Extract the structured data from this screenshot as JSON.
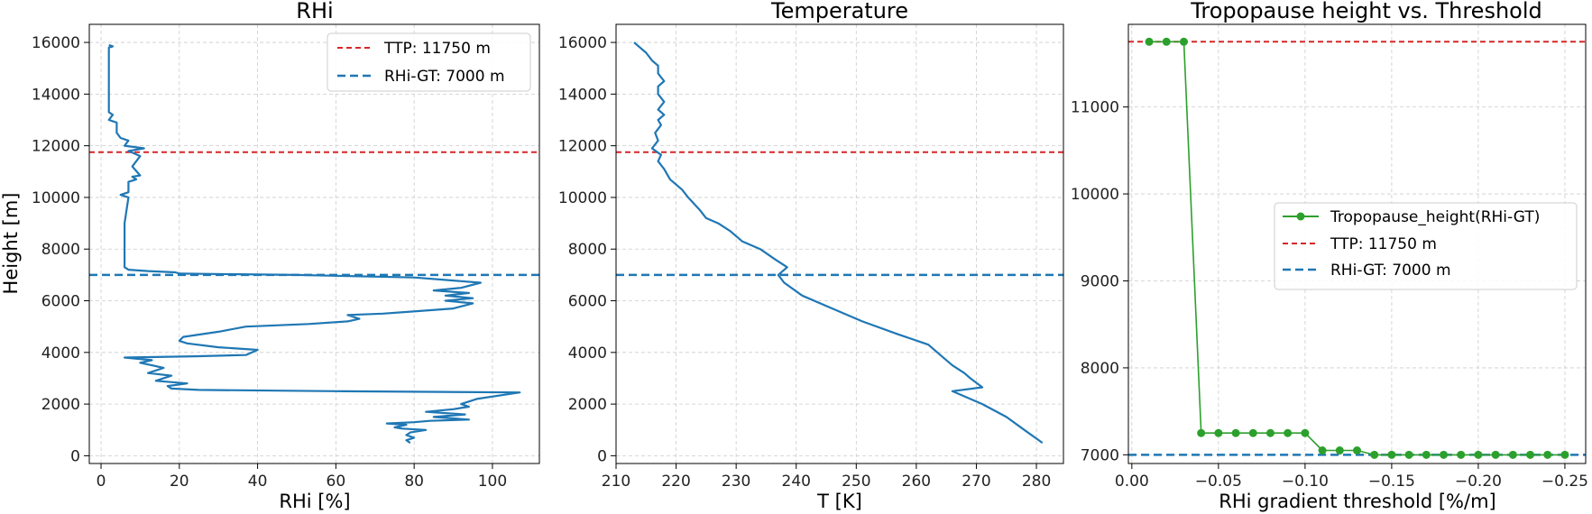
{
  "colors": {
    "profile": "#1f77b4",
    "ttp_line": "#d62728",
    "gt_line": "#1f77b4",
    "threshold_series": "#2ca02c",
    "grid": "#cccccc"
  },
  "chart_data": [
    {
      "type": "line",
      "title": "RHi",
      "xlabel": "RHi [%]",
      "ylabel": "Height [m]",
      "xlim": [
        -3,
        112
      ],
      "ylim": [
        -300,
        16700
      ],
      "xticks": [
        0,
        20,
        40,
        60,
        80,
        100
      ],
      "yticks": [
        0,
        2000,
        4000,
        6000,
        8000,
        10000,
        12000,
        14000,
        16000
      ],
      "grid": true,
      "legend_position": "top-right",
      "legend": [
        "TTP: 11750 m",
        "RHi-GT: 7000 m"
      ],
      "hlines": [
        {
          "label": "TTP: 11750 m",
          "y": 11750,
          "color": "#d62728"
        },
        {
          "label": "RHi-GT: 7000 m",
          "y": 7000,
          "color": "#1f77b4"
        }
      ],
      "series": [
        {
          "points": [
            [
              79,
              500
            ],
            [
              78,
              600
            ],
            [
              80,
              700
            ],
            [
              78,
              800
            ],
            [
              79,
              900
            ],
            [
              83,
              1000
            ],
            [
              77,
              1050
            ],
            [
              75,
              1100
            ],
            [
              78,
              1200
            ],
            [
              73,
              1250
            ],
            [
              80,
              1300
            ],
            [
              84,
              1350
            ],
            [
              94,
              1400
            ],
            [
              85,
              1500
            ],
            [
              93,
              1600
            ],
            [
              83,
              1700
            ],
            [
              90,
              1800
            ],
            [
              94,
              1900
            ],
            [
              92,
              2000
            ],
            [
              96,
              2200
            ],
            [
              107,
              2450
            ],
            [
              60,
              2500
            ],
            [
              25,
              2550
            ],
            [
              18,
              2600
            ],
            [
              17,
              2700
            ],
            [
              22,
              2800
            ],
            [
              14,
              2900
            ],
            [
              18,
              3100
            ],
            [
              12,
              3200
            ],
            [
              16,
              3400
            ],
            [
              13,
              3500
            ],
            [
              10,
              3600
            ],
            [
              13,
              3700
            ],
            [
              6,
              3800
            ],
            [
              24,
              3850
            ],
            [
              37,
              3900
            ],
            [
              40,
              4100
            ],
            [
              30,
              4200
            ],
            [
              22,
              4350
            ],
            [
              20,
              4450
            ],
            [
              21,
              4600
            ],
            [
              30,
              4800
            ],
            [
              37,
              5000
            ],
            [
              53,
              5100
            ],
            [
              63,
              5200
            ],
            [
              66,
              5300
            ],
            [
              63,
              5450
            ],
            [
              72,
              5500
            ],
            [
              81,
              5600
            ],
            [
              90,
              5700
            ],
            [
              95,
              5900
            ],
            [
              88,
              6000
            ],
            [
              95,
              6100
            ],
            [
              88,
              6200
            ],
            [
              94,
              6300
            ],
            [
              85,
              6400
            ],
            [
              92,
              6500
            ],
            [
              97,
              6700
            ],
            [
              80,
              6900
            ],
            [
              50,
              7000
            ],
            [
              20,
              7050
            ],
            [
              19,
              7100
            ],
            [
              12,
              7150
            ],
            [
              7,
              7200
            ],
            [
              6,
              7300
            ],
            [
              6,
              8000
            ],
            [
              6,
              9000
            ],
            [
              7,
              10000
            ],
            [
              5,
              10100
            ],
            [
              7,
              10200
            ],
            [
              7,
              10600
            ],
            [
              9,
              10700
            ],
            [
              8,
              10800
            ],
            [
              10,
              10850
            ],
            [
              8,
              11200
            ],
            [
              10,
              11600
            ],
            [
              7,
              11800
            ],
            [
              11,
              11900
            ],
            [
              6,
              12000
            ],
            [
              7,
              12200
            ],
            [
              5,
              12300
            ],
            [
              4,
              12500
            ],
            [
              4,
              12900
            ],
            [
              2,
              13000
            ],
            [
              3,
              13200
            ],
            [
              2,
              13300
            ],
            [
              2,
              14000
            ],
            [
              2,
              15000
            ],
            [
              2,
              15800
            ],
            [
              3,
              15850
            ],
            [
              2,
              15900
            ]
          ]
        }
      ]
    },
    {
      "type": "line",
      "title": "Temperature",
      "xlabel": "T [K]",
      "ylabel": "",
      "xlim": [
        210,
        284.5
      ],
      "ylim": [
        -300,
        16700
      ],
      "xticks": [
        210,
        220,
        230,
        240,
        250,
        260,
        270,
        280
      ],
      "yticks": [
        0,
        2000,
        4000,
        6000,
        8000,
        10000,
        12000,
        14000,
        16000
      ],
      "grid": true,
      "hlines": [
        {
          "y": 11750,
          "color": "#d62728"
        },
        {
          "y": 7000,
          "color": "#1f77b4"
        }
      ],
      "series": [
        {
          "points": [
            [
              281,
              500
            ],
            [
              278,
              1000
            ],
            [
              275,
              1500
            ],
            [
              271,
              2000
            ],
            [
              268,
              2300
            ],
            [
              266,
              2500
            ],
            [
              271,
              2650
            ],
            [
              269,
              3000
            ],
            [
              268,
              3200
            ],
            [
              266,
              3500
            ],
            [
              264,
              3900
            ],
            [
              262,
              4300
            ],
            [
              257,
              4700
            ],
            [
              251,
              5200
            ],
            [
              246,
              5700
            ],
            [
              241,
              6200
            ],
            [
              238,
              6700
            ],
            [
              237,
              7000
            ],
            [
              238.5,
              7300
            ],
            [
              236.5,
              7600
            ],
            [
              234,
              8000
            ],
            [
              231,
              8300
            ],
            [
              230,
              8500
            ],
            [
              229,
              8700
            ],
            [
              227,
              9000
            ],
            [
              225,
              9200
            ],
            [
              224,
              9500
            ],
            [
              222,
              10000
            ],
            [
              221,
              10300
            ],
            [
              219,
              10700
            ],
            [
              218,
              11100
            ],
            [
              217,
              11400
            ],
            [
              217.5,
              11650
            ],
            [
              216,
              11900
            ],
            [
              217,
              12200
            ],
            [
              216.5,
              12500
            ],
            [
              217.5,
              12800
            ],
            [
              217,
              13000
            ],
            [
              218,
              13200
            ],
            [
              217,
              13400
            ],
            [
              218,
              13700
            ],
            [
              217,
              14000
            ],
            [
              217,
              14300
            ],
            [
              218,
              14500
            ],
            [
              217,
              14800
            ],
            [
              217,
              15100
            ],
            [
              216,
              15300
            ],
            [
              215,
              15600
            ],
            [
              213,
              16000
            ]
          ]
        }
      ]
    },
    {
      "type": "line",
      "title": "Tropopause height vs. Threshold",
      "xlabel": "RHi gradient threshold [%/m]",
      "ylabel": "",
      "xlim": [
        0.002,
        -0.262
      ],
      "ylim": [
        6900,
        11950
      ],
      "xticks": [
        0.0,
        -0.05,
        -0.1,
        -0.15,
        -0.2,
        -0.25
      ],
      "xtick_labels": [
        "0.00",
        "−0.05",
        "−0.10",
        "−0.15",
        "−0.20",
        "−0.25"
      ],
      "yticks": [
        7000,
        8000,
        9000,
        10000,
        11000
      ],
      "grid": true,
      "legend_position": "center-right",
      "legend": [
        "Tropopause_height(RHi-GT)",
        "TTP: 11750 m",
        "RHi-GT: 7000 m"
      ],
      "hlines": [
        {
          "label": "TTP: 11750 m",
          "y": 11750,
          "color": "#d62728"
        },
        {
          "label": "RHi-GT: 7000 m",
          "y": 7000,
          "color": "#1f77b4"
        }
      ],
      "series": [
        {
          "name": "Tropopause_height(RHi-GT)",
          "x": [
            -0.01,
            -0.02,
            -0.03,
            -0.04,
            -0.05,
            -0.06,
            -0.07,
            -0.08,
            -0.09,
            -0.1,
            -0.11,
            -0.12,
            -0.13,
            -0.14,
            -0.15,
            -0.16,
            -0.17,
            -0.18,
            -0.19,
            -0.2,
            -0.21,
            -0.22,
            -0.23,
            -0.24,
            -0.25
          ],
          "y": [
            11750,
            11750,
            11750,
            7250,
            7250,
            7250,
            7250,
            7250,
            7250,
            7250,
            7050,
            7050,
            7050,
            7000,
            7000,
            7000,
            7000,
            7000,
            7000,
            7000,
            7000,
            7000,
            7000,
            7000,
            7000
          ]
        }
      ]
    }
  ]
}
